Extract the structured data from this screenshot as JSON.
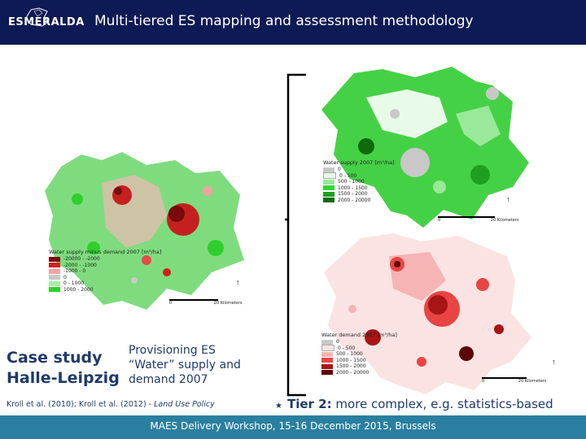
{
  "header": {
    "logo_text": "ESMERALDA",
    "title": "Multi-tiered ES mapping and assessment methodology"
  },
  "left_map": {
    "legend_title": "Water supply minus demand 2007 [m³/ha]",
    "legend_items": [
      {
        "label": "-20000 - -2000",
        "color": "#7a0a0a"
      },
      {
        "label": "-2000 - -1000",
        "color": "#d31f1f"
      },
      {
        "label": "-1000 - 0",
        "color": "#f3a3a3"
      },
      {
        "label": "0",
        "color": "#c8c8c8"
      },
      {
        "label": "0 - 1000",
        "color": "#a8eda8"
      },
      {
        "label": "1000 - 2000",
        "color": "#2ecf2e"
      }
    ],
    "scale_zero": "0",
    "scale_end": "20",
    "scale_unit": "Kilometers"
  },
  "top_right_map": {
    "legend_title": "Water supply 2007 [m³/ha]",
    "legend_items": [
      {
        "label": "0",
        "color": "#c8c8c8"
      },
      {
        "label": "0 - 500",
        "color": "#e8fbe8"
      },
      {
        "label": "500 - 1000",
        "color": "#9ae89a"
      },
      {
        "label": "1000 - 1500",
        "color": "#33d633"
      },
      {
        "label": "1500 - 2000",
        "color": "#1ea01e"
      },
      {
        "label": "2000 - 20000",
        "color": "#0d6b0d"
      }
    ],
    "scale_zero": "0",
    "scale_end": "20",
    "scale_unit": "Kilometers"
  },
  "bottom_right_map": {
    "legend_title": "Water demand 2007 [m³/ha]",
    "legend_items": [
      {
        "label": "0",
        "color": "#c8c8c8"
      },
      {
        "label": "0 - 500",
        "color": "#fbe3e3"
      },
      {
        "label": "500 - 1000",
        "color": "#f6b4b4"
      },
      {
        "label": "1000 - 1500",
        "color": "#e84444"
      },
      {
        "label": "1500 - 2000",
        "color": "#a81515"
      },
      {
        "label": "2000 - 20000",
        "color": "#5c0707"
      }
    ],
    "scale_zero": "0",
    "scale_end": "20",
    "scale_unit": "Kilometers"
  },
  "case_study": {
    "line1": "Case study",
    "line2": "Halle-Leipzig"
  },
  "provisioning": {
    "line1": "Provisioning ES",
    "line2": "“Water” supply and",
    "line3": "demand 2007"
  },
  "citation": {
    "text": "Kroll et al. (2010); Kroll et al. (2012) - ",
    "journal": "Land Use Policy"
  },
  "tier": {
    "bullet": "★",
    "bold": "Tier 2:",
    "rest": " more complex, e.g. statistics-based"
  },
  "footer": {
    "text": "MAES Delivery Workshop, 15-16 December 2015, Brussels"
  },
  "colors": {
    "header_bg": "#0e1a55",
    "footer_bg": "#2a7fa0",
    "text_blue": "#1f3a6b"
  }
}
